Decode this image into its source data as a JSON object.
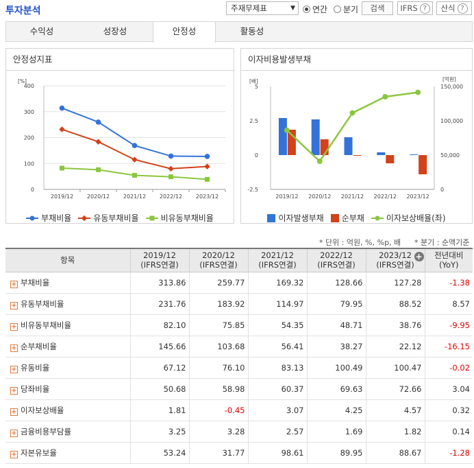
{
  "header": {
    "title": "투자분석",
    "select_value": "주재무제표",
    "radio_annual": "연간",
    "radio_quarter": "분기",
    "search_label": "검색",
    "ifrs_label": "IFRS",
    "calc_label": "산식"
  },
  "tabs": [
    "수익성",
    "성장성",
    "안정성",
    "활동성"
  ],
  "active_tab": 2,
  "colors": {
    "blue": "#3373d9",
    "red": "#d2421b",
    "green": "#8cc63f",
    "accent": "#2050c8",
    "negative": "#e00000"
  },
  "left_panel": {
    "title": "안정성지표"
  },
  "right_panel": {
    "title": "이자비용발생부채"
  },
  "chart_data": [
    {
      "type": "line",
      "title": "안정성지표",
      "ylabel": "[%]",
      "x": [
        "2019/12",
        "2020/12",
        "2021/12",
        "2022/12",
        "2023/12"
      ],
      "ylim": [
        0,
        400
      ],
      "yticks": [
        "0",
        "100",
        "200",
        "300",
        "400"
      ],
      "series": [
        {
          "name": "부채비율",
          "values": [
            313.86,
            259.77,
            169.32,
            128.66,
            127.28
          ],
          "color": "#3373d9",
          "marker": "circle"
        },
        {
          "name": "유동부채비율",
          "values": [
            231.76,
            183.92,
            114.97,
            79.95,
            88.52
          ],
          "color": "#d2421b",
          "marker": "diamond"
        },
        {
          "name": "비유동부채비율",
          "values": [
            82.1,
            75.85,
            54.35,
            48.71,
            38.76
          ],
          "color": "#8cc63f",
          "marker": "square"
        }
      ],
      "legend_position": "bottom",
      "grid": true
    },
    {
      "type": "bar",
      "title": "이자비용발생부채",
      "ylabel_left": "[배]",
      "ylabel_right": "[억원]",
      "x": [
        "2019/12",
        "2020/12",
        "2021/12",
        "2022/12",
        "2023/12"
      ],
      "ylim_left": [
        -2.5,
        5
      ],
      "yticks_left": [
        "-2.5",
        "0",
        "2.5",
        "5"
      ],
      "ylim_right": [
        0,
        150000
      ],
      "yticks_right": [
        "0",
        "50,000",
        "100,000",
        "150,000"
      ],
      "series": [
        {
          "name": "이자발생부채",
          "values": [
            2.7,
            2.6,
            1.3,
            0.2,
            0.05
          ],
          "color": "#3373d9",
          "axis": "left"
        },
        {
          "name": "순부채",
          "values": [
            1.85,
            1.15,
            -0.05,
            -0.6,
            -1.4
          ],
          "color": "#d2421b",
          "axis": "left"
        },
        {
          "name": "이자보상배율(좌)",
          "values": [
            1.81,
            -0.45,
            3.07,
            4.25,
            4.57
          ],
          "color": "#8cc63f",
          "axis": "left",
          "type": "line"
        }
      ],
      "legend_position": "bottom",
      "grid": false
    }
  ],
  "notes": {
    "unit": "* 단위 : 억원, %, %p, 배",
    "period": "* 분기 : 순액기준"
  },
  "table": {
    "header_item": "항목",
    "columns": [
      {
        "period": "2019/12",
        "basis": "(IFRS연결)"
      },
      {
        "period": "2020/12",
        "basis": "(IFRS연결)"
      },
      {
        "period": "2021/12",
        "basis": "(IFRS연결)"
      },
      {
        "period": "2022/12",
        "basis": "(IFRS연결)"
      },
      {
        "period": "2023/12",
        "basis": "(IFRS연결)"
      }
    ],
    "yoy_header": "전년대비",
    "yoy_sub": "(YoY)",
    "rows": [
      {
        "name": "부채비율",
        "values": [
          "313.86",
          "259.77",
          "169.32",
          "128.66",
          "127.28"
        ],
        "yoy": "-1.38"
      },
      {
        "name": "유동부채비율",
        "values": [
          "231.76",
          "183.92",
          "114.97",
          "79.95",
          "88.52"
        ],
        "yoy": "8.57"
      },
      {
        "name": "비유동부채비율",
        "values": [
          "82.10",
          "75.85",
          "54.35",
          "48.71",
          "38.76"
        ],
        "yoy": "-9.95"
      },
      {
        "name": "순부채비율",
        "values": [
          "145.66",
          "103.68",
          "56.41",
          "38.27",
          "22.12"
        ],
        "yoy": "-16.15"
      },
      {
        "name": "유동비율",
        "values": [
          "67.12",
          "76.10",
          "83.13",
          "100.49",
          "100.47"
        ],
        "yoy": "-0.02"
      },
      {
        "name": "당좌비율",
        "values": [
          "50.68",
          "58.98",
          "60.37",
          "69.63",
          "72.66"
        ],
        "yoy": "3.04"
      },
      {
        "name": "이자보상배율",
        "values": [
          "1.81",
          "-0.45",
          "3.07",
          "4.25",
          "4.57"
        ],
        "yoy": "0.32"
      },
      {
        "name": "금융비용부담률",
        "values": [
          "3.25",
          "3.28",
          "2.57",
          "1.69",
          "1.82"
        ],
        "yoy": "0.14"
      },
      {
        "name": "자본유보율",
        "values": [
          "53.24",
          "31.77",
          "98.61",
          "89.95",
          "88.67"
        ],
        "yoy": "-1.28"
      }
    ]
  }
}
